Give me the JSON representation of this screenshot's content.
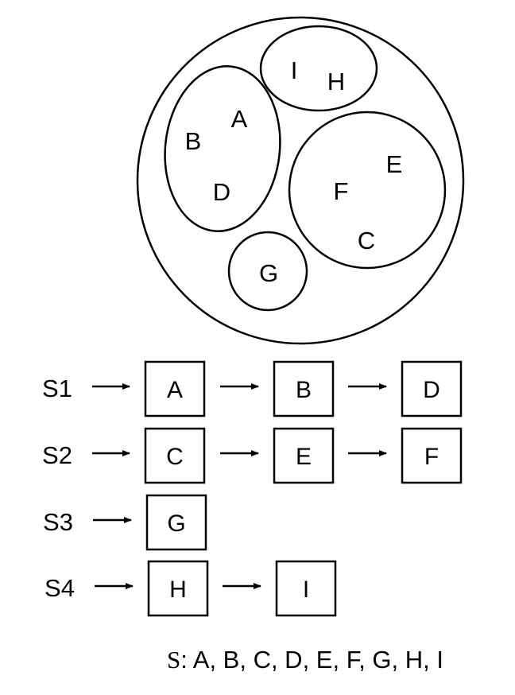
{
  "venn": {
    "outer_label": "",
    "cluster_top": [
      "I",
      "H"
    ],
    "cluster_left": [
      "A",
      "B",
      "D"
    ],
    "cluster_right": [
      "E",
      "F",
      "C"
    ],
    "cluster_bottom": [
      "G"
    ]
  },
  "lists": [
    {
      "name": "S1",
      "items": [
        "A",
        "B",
        "D"
      ]
    },
    {
      "name": "S2",
      "items": [
        "C",
        "E",
        "F"
      ]
    },
    {
      "name": "S3",
      "items": [
        "G"
      ]
    },
    {
      "name": "S4",
      "items": [
        "H",
        "I"
      ]
    }
  ],
  "summary": {
    "set_symbol": "S",
    "elements_text": ": A, B, C, D, E, F, G, H, I"
  },
  "colors": {
    "stroke": "#000000",
    "background": "#ffffff"
  }
}
